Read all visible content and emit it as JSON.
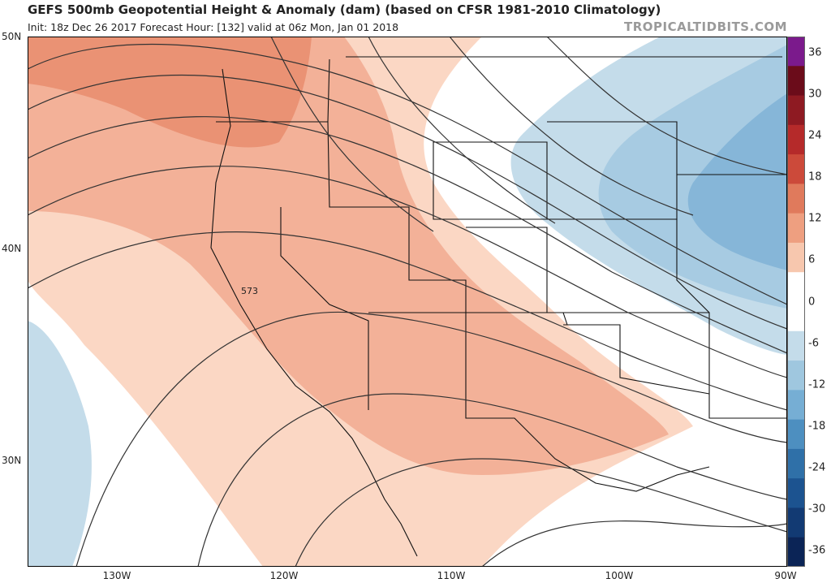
{
  "header": {
    "title": "GEFS 500mb Geopotential Height & Anomaly (dam) (based on CFSR 1981-2010 Climatology)",
    "subtitle": "Init: 18z Dec 26 2017   Forecast Hour: [132]   valid at 06z Mon, Jan 01 2018",
    "brand": "TROPICALTIDBITS.COM"
  },
  "map": {
    "latitude_labels": [
      "50N",
      "40N",
      "30N"
    ],
    "longitude_labels": [
      "130W",
      "120W",
      "110W",
      "100W",
      "90W"
    ],
    "contour_label": "573"
  },
  "colorbar": {
    "levels": [
      "36",
      "30",
      "24",
      "18",
      "12",
      "6",
      "0",
      "-6",
      "-12",
      "-18",
      "-24",
      "-30",
      "-36"
    ],
    "colors": [
      "#7b1a8c",
      "#6b0c1a",
      "#8e1a22",
      "#b52a2a",
      "#cc4a3a",
      "#e07a5c",
      "#ee9f80",
      "#f7c7ae",
      "#ffffff",
      "#ffffff",
      "#c4dcea",
      "#9fc7df",
      "#76aed4",
      "#4d8fc0",
      "#2f70a8",
      "#1c5390",
      "#123a73",
      "#0b2456"
    ]
  },
  "colors": {
    "warm_strong": "#ea9274",
    "warm_mid": "#f3b198",
    "warm_light": "#fbd7c4",
    "cool_light": "#c4dcea",
    "cool_mid": "#a7cbe2",
    "cool_strong": "#86b6d8"
  }
}
